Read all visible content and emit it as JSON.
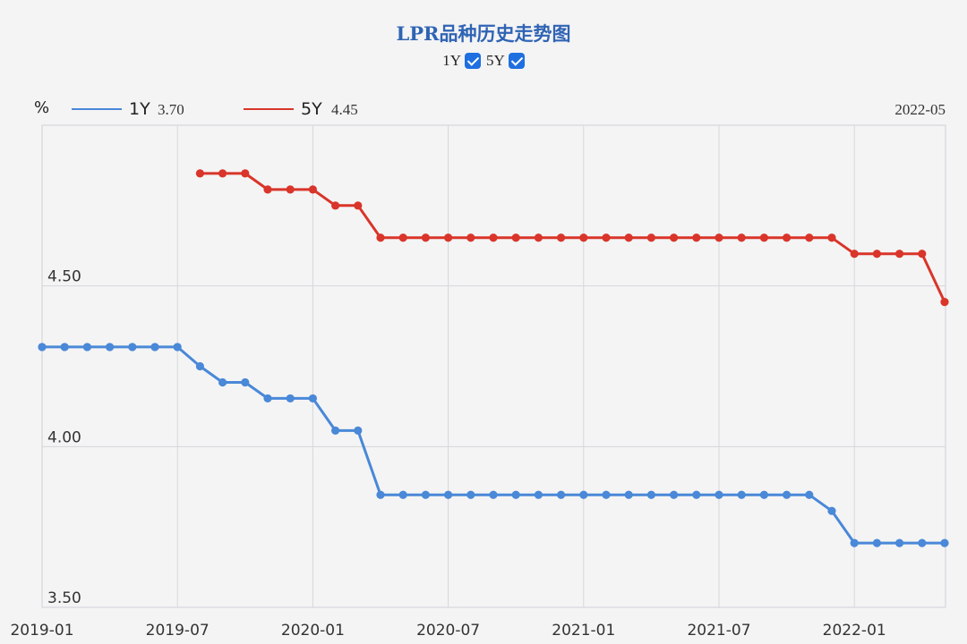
{
  "title": "LPR品种历史走势图",
  "toggles": [
    {
      "label": "1Y",
      "checked": true
    },
    {
      "label": "5Y",
      "checked": true
    }
  ],
  "unit": "%",
  "latest_date": "2022-05",
  "colors": {
    "1Y": "#4a88d8",
    "5Y": "#d9352a",
    "grid": "#d5d7dc",
    "title": "#2f64b4"
  },
  "legend": [
    {
      "name": "1Y",
      "latest": "3.70",
      "color": "#4a88d8"
    },
    {
      "name": "5Y",
      "latest": "4.45",
      "color": "#d9352a"
    }
  ],
  "chart_data": {
    "type": "line",
    "title": "LPR品种历史走势图",
    "x_start": "2019-01",
    "x_end": "2022-05",
    "x_ticks": [
      "2019-01",
      "2019-07",
      "2020-01",
      "2020-07",
      "2021-01",
      "2021-07",
      "2022-01"
    ],
    "y_ticks": [
      "4.50",
      "4.00",
      "3.50"
    ],
    "ylim": [
      3.5,
      5.0
    ],
    "grid": true,
    "legend_position": "top-left",
    "series": [
      {
        "name": "1Y",
        "start": "2019-01",
        "values": [
          4.31,
          4.31,
          4.31,
          4.31,
          4.31,
          4.31,
          4.31,
          4.25,
          4.2,
          4.2,
          4.15,
          4.15,
          4.15,
          4.05,
          4.05,
          3.85,
          3.85,
          3.85,
          3.85,
          3.85,
          3.85,
          3.85,
          3.85,
          3.85,
          3.85,
          3.85,
          3.85,
          3.85,
          3.85,
          3.85,
          3.85,
          3.85,
          3.85,
          3.85,
          3.85,
          3.8,
          3.7,
          3.7,
          3.7,
          3.7,
          3.7
        ]
      },
      {
        "name": "5Y",
        "start": "2019-08",
        "values": [
          4.85,
          4.85,
          4.85,
          4.8,
          4.8,
          4.8,
          4.75,
          4.75,
          4.65,
          4.65,
          4.65,
          4.65,
          4.65,
          4.65,
          4.65,
          4.65,
          4.65,
          4.65,
          4.65,
          4.65,
          4.65,
          4.65,
          4.65,
          4.65,
          4.65,
          4.65,
          4.65,
          4.65,
          4.65,
          4.6,
          4.6,
          4.6,
          4.6,
          4.45
        ]
      }
    ]
  }
}
